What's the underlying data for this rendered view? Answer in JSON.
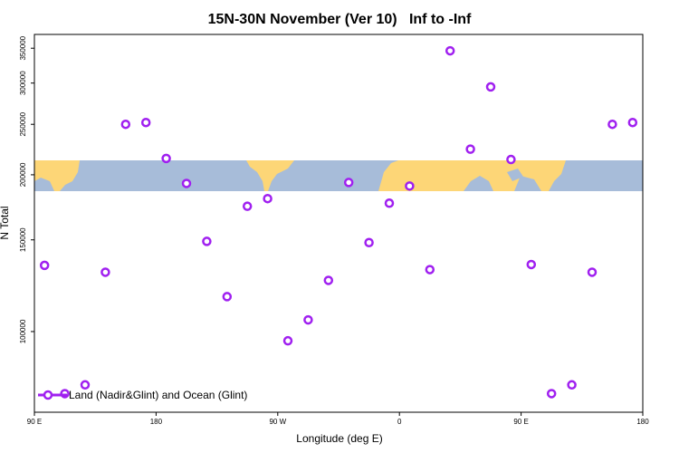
{
  "chart_data": {
    "type": "scatter",
    "title": "15N-30N November (Ver 10)   Inf to -Inf",
    "x_label": "Longitude (deg E)",
    "y_label": "N Total",
    "series": [
      {
        "name": "Land (Nadir&Glint) and Ocean (Glint)",
        "color": "#a020f0",
        "x": [
          97.5,
          112.5,
          127.5,
          142.5,
          157.5,
          172.5,
          187.5,
          202.5,
          217.5,
          232.5,
          247.5,
          262.5,
          277.5,
          292.5,
          307.5,
          322.5,
          337.5,
          352.5,
          367.5,
          382.5,
          397.5,
          412.5,
          427.5,
          442.5,
          457.5,
          472.5,
          487.5,
          502.5,
          517.5,
          532.5
        ],
        "values": [
          134000,
          76000,
          79000,
          130000,
          250000,
          252000,
          215000,
          192500,
          149000,
          116700,
          174000,
          180000,
          96000,
          105300,
          125400,
          193300,
          148200,
          176400,
          190300,
          131500,
          346000,
          224000,
          295000,
          214000,
          134500,
          76000,
          79000,
          130000,
          250000,
          252000
        ]
      }
    ],
    "xlim": [
      90,
      540
    ],
    "xticks": [
      {
        "value": 90,
        "label": "90 E"
      },
      {
        "value": 180,
        "label": "180"
      },
      {
        "value": 270,
        "label": "90 W"
      },
      {
        "value": 360,
        "label": "0"
      },
      {
        "value": 450,
        "label": "90 E"
      },
      {
        "value": 540,
        "label": "180"
      }
    ],
    "ylim": [
      70000,
      372000
    ],
    "yticks": [
      100000,
      150000,
      200000,
      250000,
      300000,
      350000
    ],
    "ylog": true,
    "legend": "bottom-left"
  }
}
